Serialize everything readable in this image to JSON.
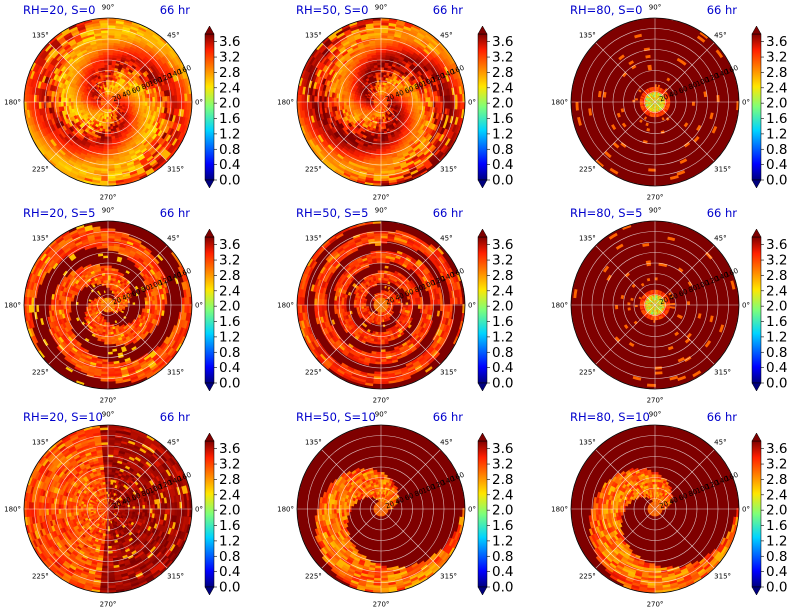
{
  "chart_data": {
    "type": "heatmap",
    "projection": "polar",
    "grid": true,
    "layout": {
      "rows": 3,
      "cols": 3
    },
    "colormap": "jet",
    "angular_ticks": [
      "0°",
      "45°",
      "90°",
      "135°",
      "180°",
      "225°",
      "270°",
      "315°"
    ],
    "radial_ticks": [
      "20",
      "40",
      "60",
      "80",
      "100",
      "120",
      "140",
      "160"
    ],
    "colorbar_ticks": [
      "0.0",
      "0.4",
      "0.8",
      "1.2",
      "1.6",
      "2.0",
      "2.4",
      "2.8",
      "3.2",
      "3.6"
    ],
    "value_range": [
      0.0,
      3.8
    ],
    "panels": [
      {
        "title": "RH=20, S=0",
        "time": "66 hr",
        "pattern": "broad",
        "level": 3.1
      },
      {
        "title": "RH=50, S=0",
        "time": "66 hr",
        "pattern": "broad",
        "level": 3.3
      },
      {
        "title": "RH=80, S=0",
        "time": "66 hr",
        "pattern": "core",
        "level": 3.85
      },
      {
        "title": "RH=20, S=5",
        "time": "66 hr",
        "pattern": "spiral",
        "level": 3.6
      },
      {
        "title": "RH=50, S=5",
        "time": "66 hr",
        "pattern": "rings",
        "level": 3.7
      },
      {
        "title": "RH=80, S=5",
        "time": "66 hr",
        "pattern": "core",
        "level": 3.85
      },
      {
        "title": "RH=20, S=10",
        "time": "66 hr",
        "pattern": "sheared",
        "level": 3.5
      },
      {
        "title": "RH=50, S=10",
        "time": "66 hr",
        "pattern": "band",
        "level": 3.75
      },
      {
        "title": "RH=80, S=10",
        "time": "66 hr",
        "pattern": "band",
        "level": 3.75
      }
    ]
  }
}
